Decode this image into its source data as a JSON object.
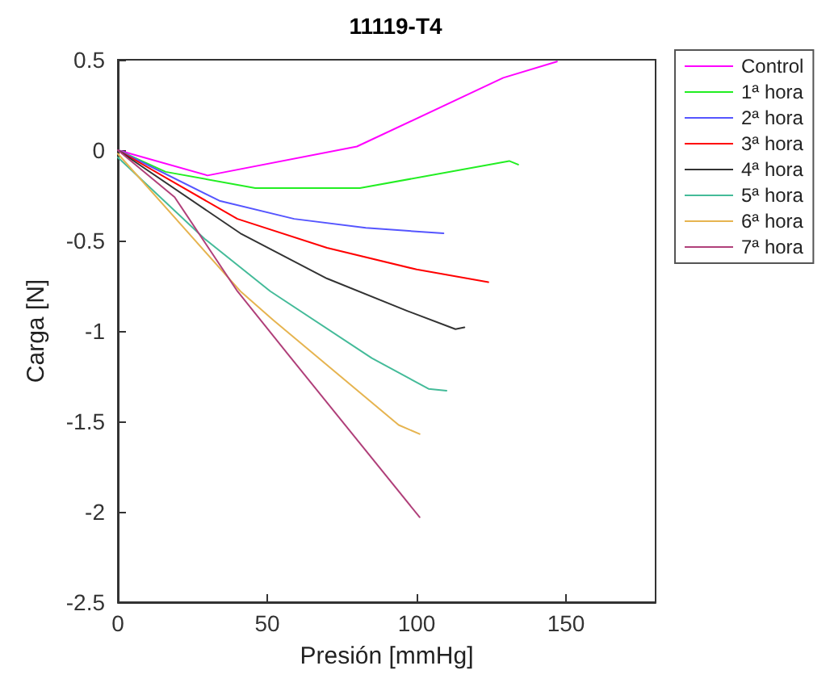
{
  "chart_data": {
    "type": "line",
    "title": "11119-T4",
    "xlabel": "Presión [mmHg]",
    "ylabel": "Carga [N]",
    "xlim": [
      0,
      180
    ],
    "xticks": [
      0,
      50,
      100,
      150
    ],
    "ylim": [
      -2.5,
      0.5
    ],
    "yticks": [
      -2.5,
      -2,
      -1.5,
      -1,
      -0.5,
      0,
      0.5
    ],
    "grid": false,
    "legend": "top right",
    "marker": "none",
    "series": [
      {
        "name": "Control",
        "color": "#ff00ff",
        "x": [
          0,
          30,
          80,
          129,
          147
        ],
        "values": [
          0,
          -0.14,
          0.02,
          0.4,
          0.49
        ]
      },
      {
        "name": "1ª hora",
        "color": "#22ee22",
        "x": [
          0,
          16,
          46,
          81,
          131,
          134
        ],
        "values": [
          0,
          -0.12,
          -0.21,
          -0.21,
          -0.06,
          -0.08
        ]
      },
      {
        "name": "2ª hora",
        "color": "#5555ff",
        "x": [
          0,
          34,
          59,
          83,
          109
        ],
        "values": [
          0,
          -0.28,
          -0.38,
          -0.43,
          -0.46
        ]
      },
      {
        "name": "3ª hora",
        "color": "#ff0000",
        "x": [
          0,
          40,
          70,
          100,
          124
        ],
        "values": [
          0,
          -0.38,
          -0.54,
          -0.66,
          -0.73
        ]
      },
      {
        "name": "4ª hora",
        "color": "#333333",
        "x": [
          0,
          41,
          70,
          97,
          113,
          116
        ],
        "values": [
          0,
          -0.46,
          -0.71,
          -0.89,
          -0.99,
          -0.98
        ]
      },
      {
        "name": "5ª hora",
        "color": "#44bb99",
        "x": [
          0,
          29,
          51,
          85,
          104,
          110
        ],
        "values": [
          -0.04,
          -0.49,
          -0.78,
          -1.15,
          -1.32,
          -1.33
        ]
      },
      {
        "name": "6ª hora",
        "color": "#e6b450",
        "x": [
          0,
          41,
          52,
          94,
          101
        ],
        "values": [
          -0.02,
          -0.78,
          -0.94,
          -1.52,
          -1.57
        ]
      },
      {
        "name": "7ª hora",
        "color": "#b0407a",
        "x": [
          0,
          19,
          40,
          57,
          101
        ],
        "values": [
          0,
          -0.26,
          -0.78,
          -1.13,
          -2.03
        ]
      }
    ]
  }
}
